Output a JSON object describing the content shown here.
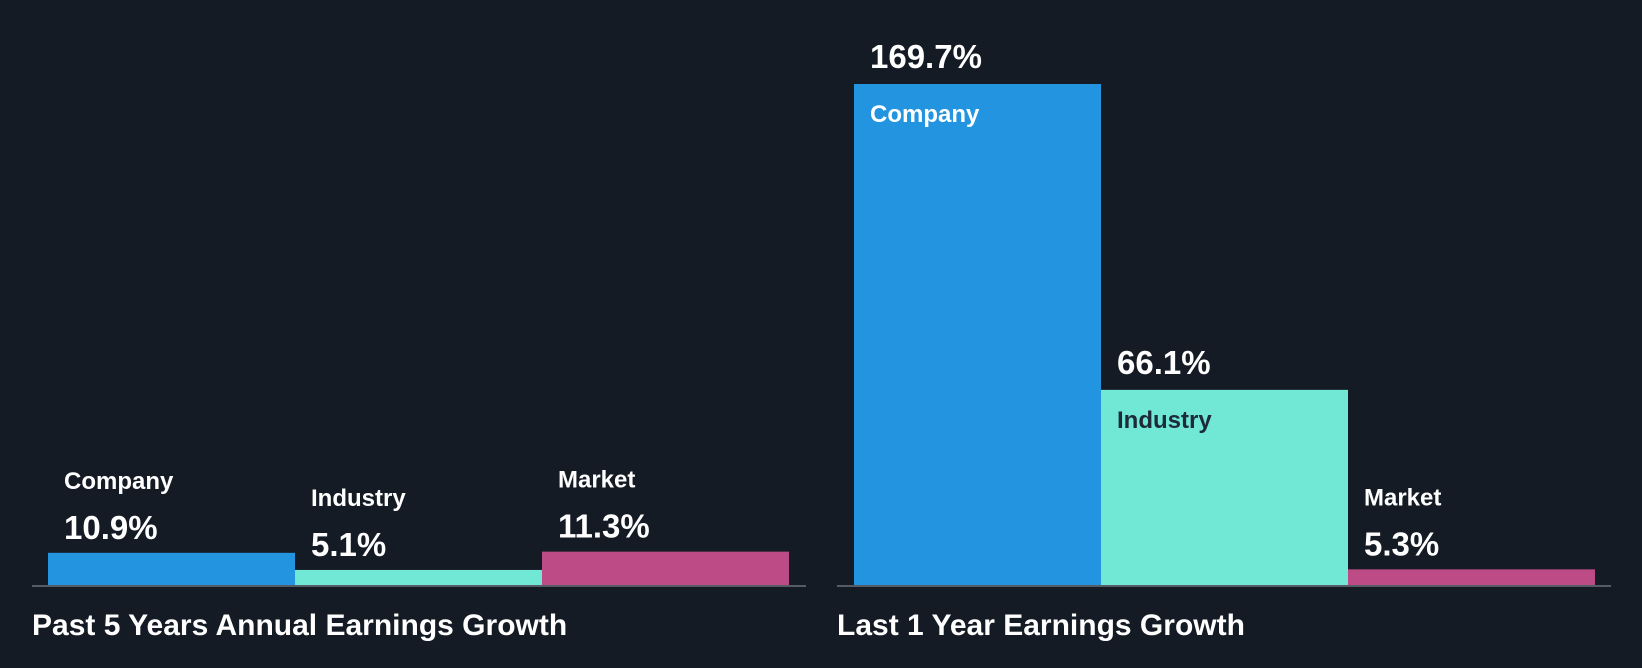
{
  "colors": {
    "background": "#151b24",
    "company": "#2394df",
    "industry": "#71e7d6",
    "market": "#bc4b86",
    "axis": "#6b727c",
    "text": "#ffffff",
    "text_dark": "#1d2a38"
  },
  "chart_data": [
    {
      "type": "bar",
      "title": "Past 5 Years Annual Earnings Growth",
      "categories": [
        "Company",
        "Industry",
        "Market"
      ],
      "values": [
        10.9,
        5.1,
        11.3
      ],
      "value_labels": [
        "10.9%",
        "5.1%",
        "11.3%"
      ],
      "unit": "%",
      "ylim": [
        0,
        169.7
      ],
      "xlabel": "",
      "ylabel": "",
      "grid": false
    },
    {
      "type": "bar",
      "title": "Last 1 Year Earnings Growth",
      "categories": [
        "Company",
        "Industry",
        "Market"
      ],
      "values": [
        169.7,
        66.1,
        5.3
      ],
      "value_labels": [
        "169.7%",
        "66.1%",
        "5.3%"
      ],
      "unit": "%",
      "ylim": [
        0,
        169.7
      ],
      "xlabel": "",
      "ylabel": "",
      "grid": false
    }
  ]
}
